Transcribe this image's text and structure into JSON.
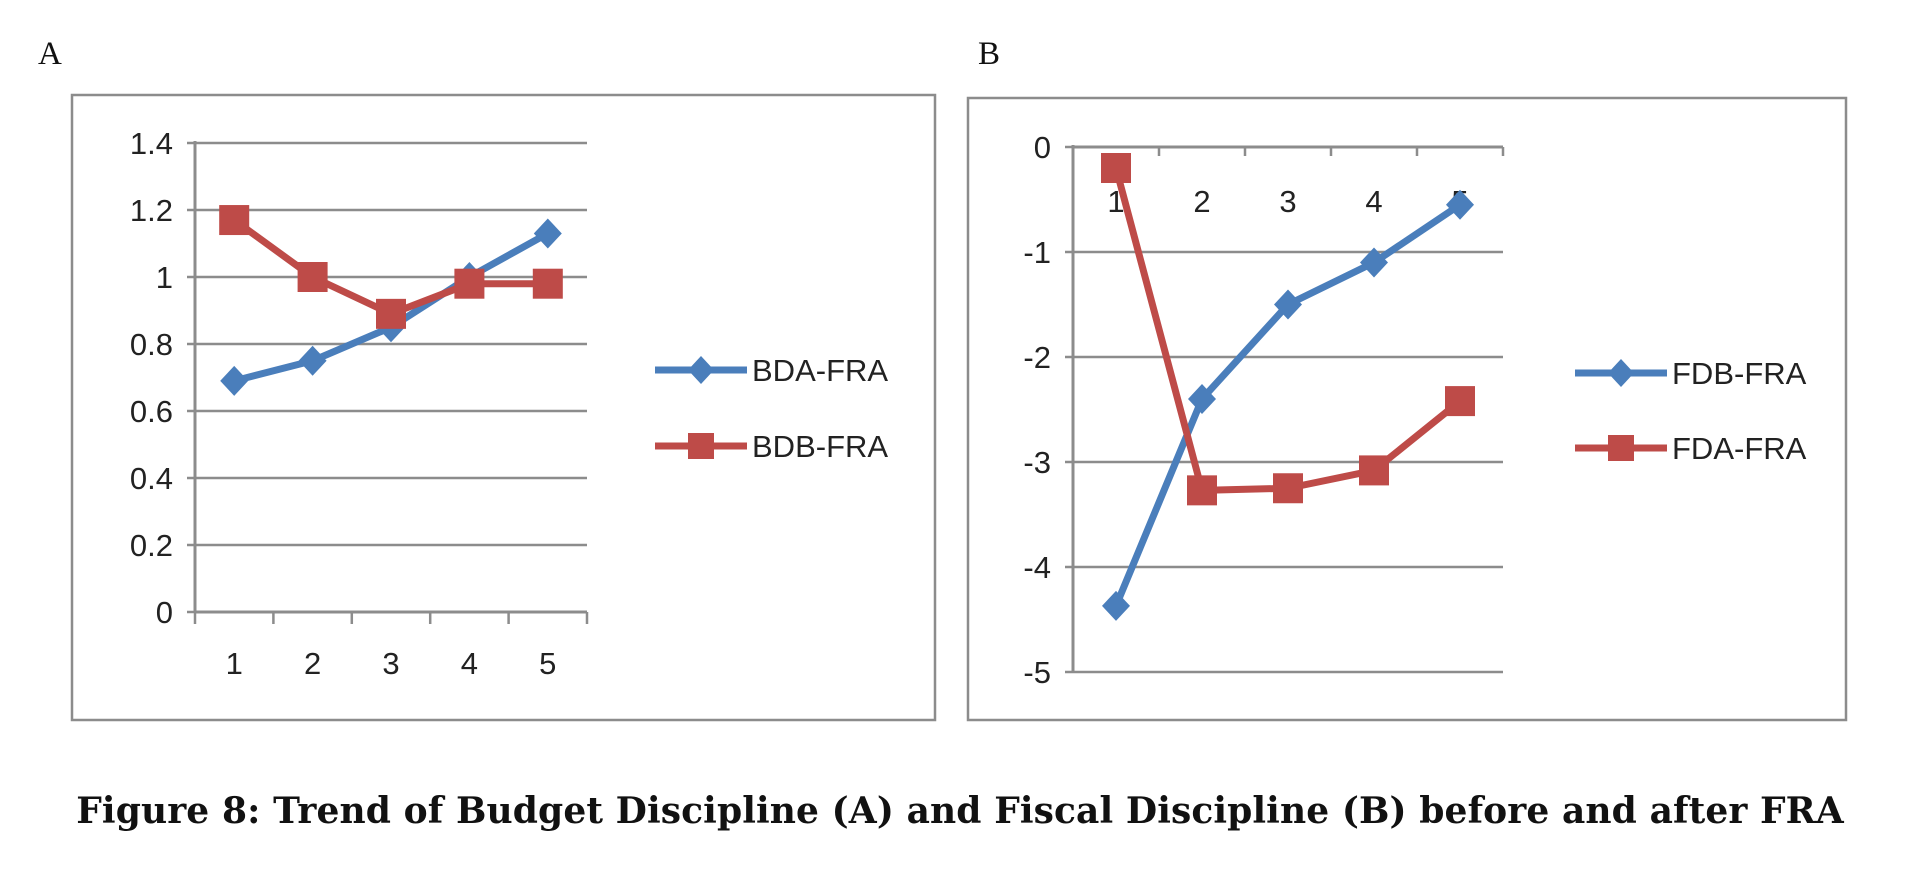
{
  "figure": {
    "caption": "Figure 8: Trend of Budget Discipline (A) and Fiscal Discipline (B) before and after FRA"
  },
  "chart_data": [
    {
      "panel_label": "A",
      "type": "line",
      "title": "",
      "xlabel": "",
      "ylabel": "",
      "categories": [
        "1",
        "2",
        "3",
        "4",
        "5"
      ],
      "ylim": [
        0,
        1.4
      ],
      "yticks": [
        0,
        0.2,
        0.4,
        0.6,
        0.8,
        1,
        1.2,
        1.4
      ],
      "ytick_labels": [
        "0",
        "0.2",
        "0.4",
        "0.6",
        "0.8",
        "1",
        "1.2",
        "1.4"
      ],
      "x_tick_labels_position": "bottom",
      "grid": true,
      "legend_position": "right",
      "series": [
        {
          "name": "BDA-FRA",
          "color": "#4a7ebb",
          "marker": "diamond",
          "values": [
            0.69,
            0.75,
            0.85,
            1.0,
            1.13
          ]
        },
        {
          "name": "BDB-FRA",
          "color": "#be4b48",
          "marker": "square",
          "values": [
            1.17,
            1.0,
            0.89,
            0.98,
            0.98
          ]
        }
      ]
    },
    {
      "panel_label": "B",
      "type": "line",
      "title": "",
      "xlabel": "",
      "ylabel": "",
      "categories": [
        "1",
        "2",
        "3",
        "4",
        "5"
      ],
      "ylim": [
        -5,
        0
      ],
      "yticks": [
        -5,
        -4,
        -3,
        -2,
        -1,
        0
      ],
      "ytick_labels": [
        "-5",
        "-4",
        "-3",
        "-2",
        "-1",
        "0"
      ],
      "x_tick_labels_position": "top",
      "grid": true,
      "legend_position": "right",
      "series": [
        {
          "name": "FDB-FRA",
          "color": "#4a7ebb",
          "marker": "diamond",
          "values": [
            -4.37,
            -2.4,
            -1.5,
            -1.1,
            -0.55
          ]
        },
        {
          "name": "FDA-FRA",
          "color": "#be4b48",
          "marker": "square",
          "values": [
            -0.2,
            -3.27,
            -3.25,
            -3.08,
            -2.42
          ]
        }
      ]
    }
  ]
}
